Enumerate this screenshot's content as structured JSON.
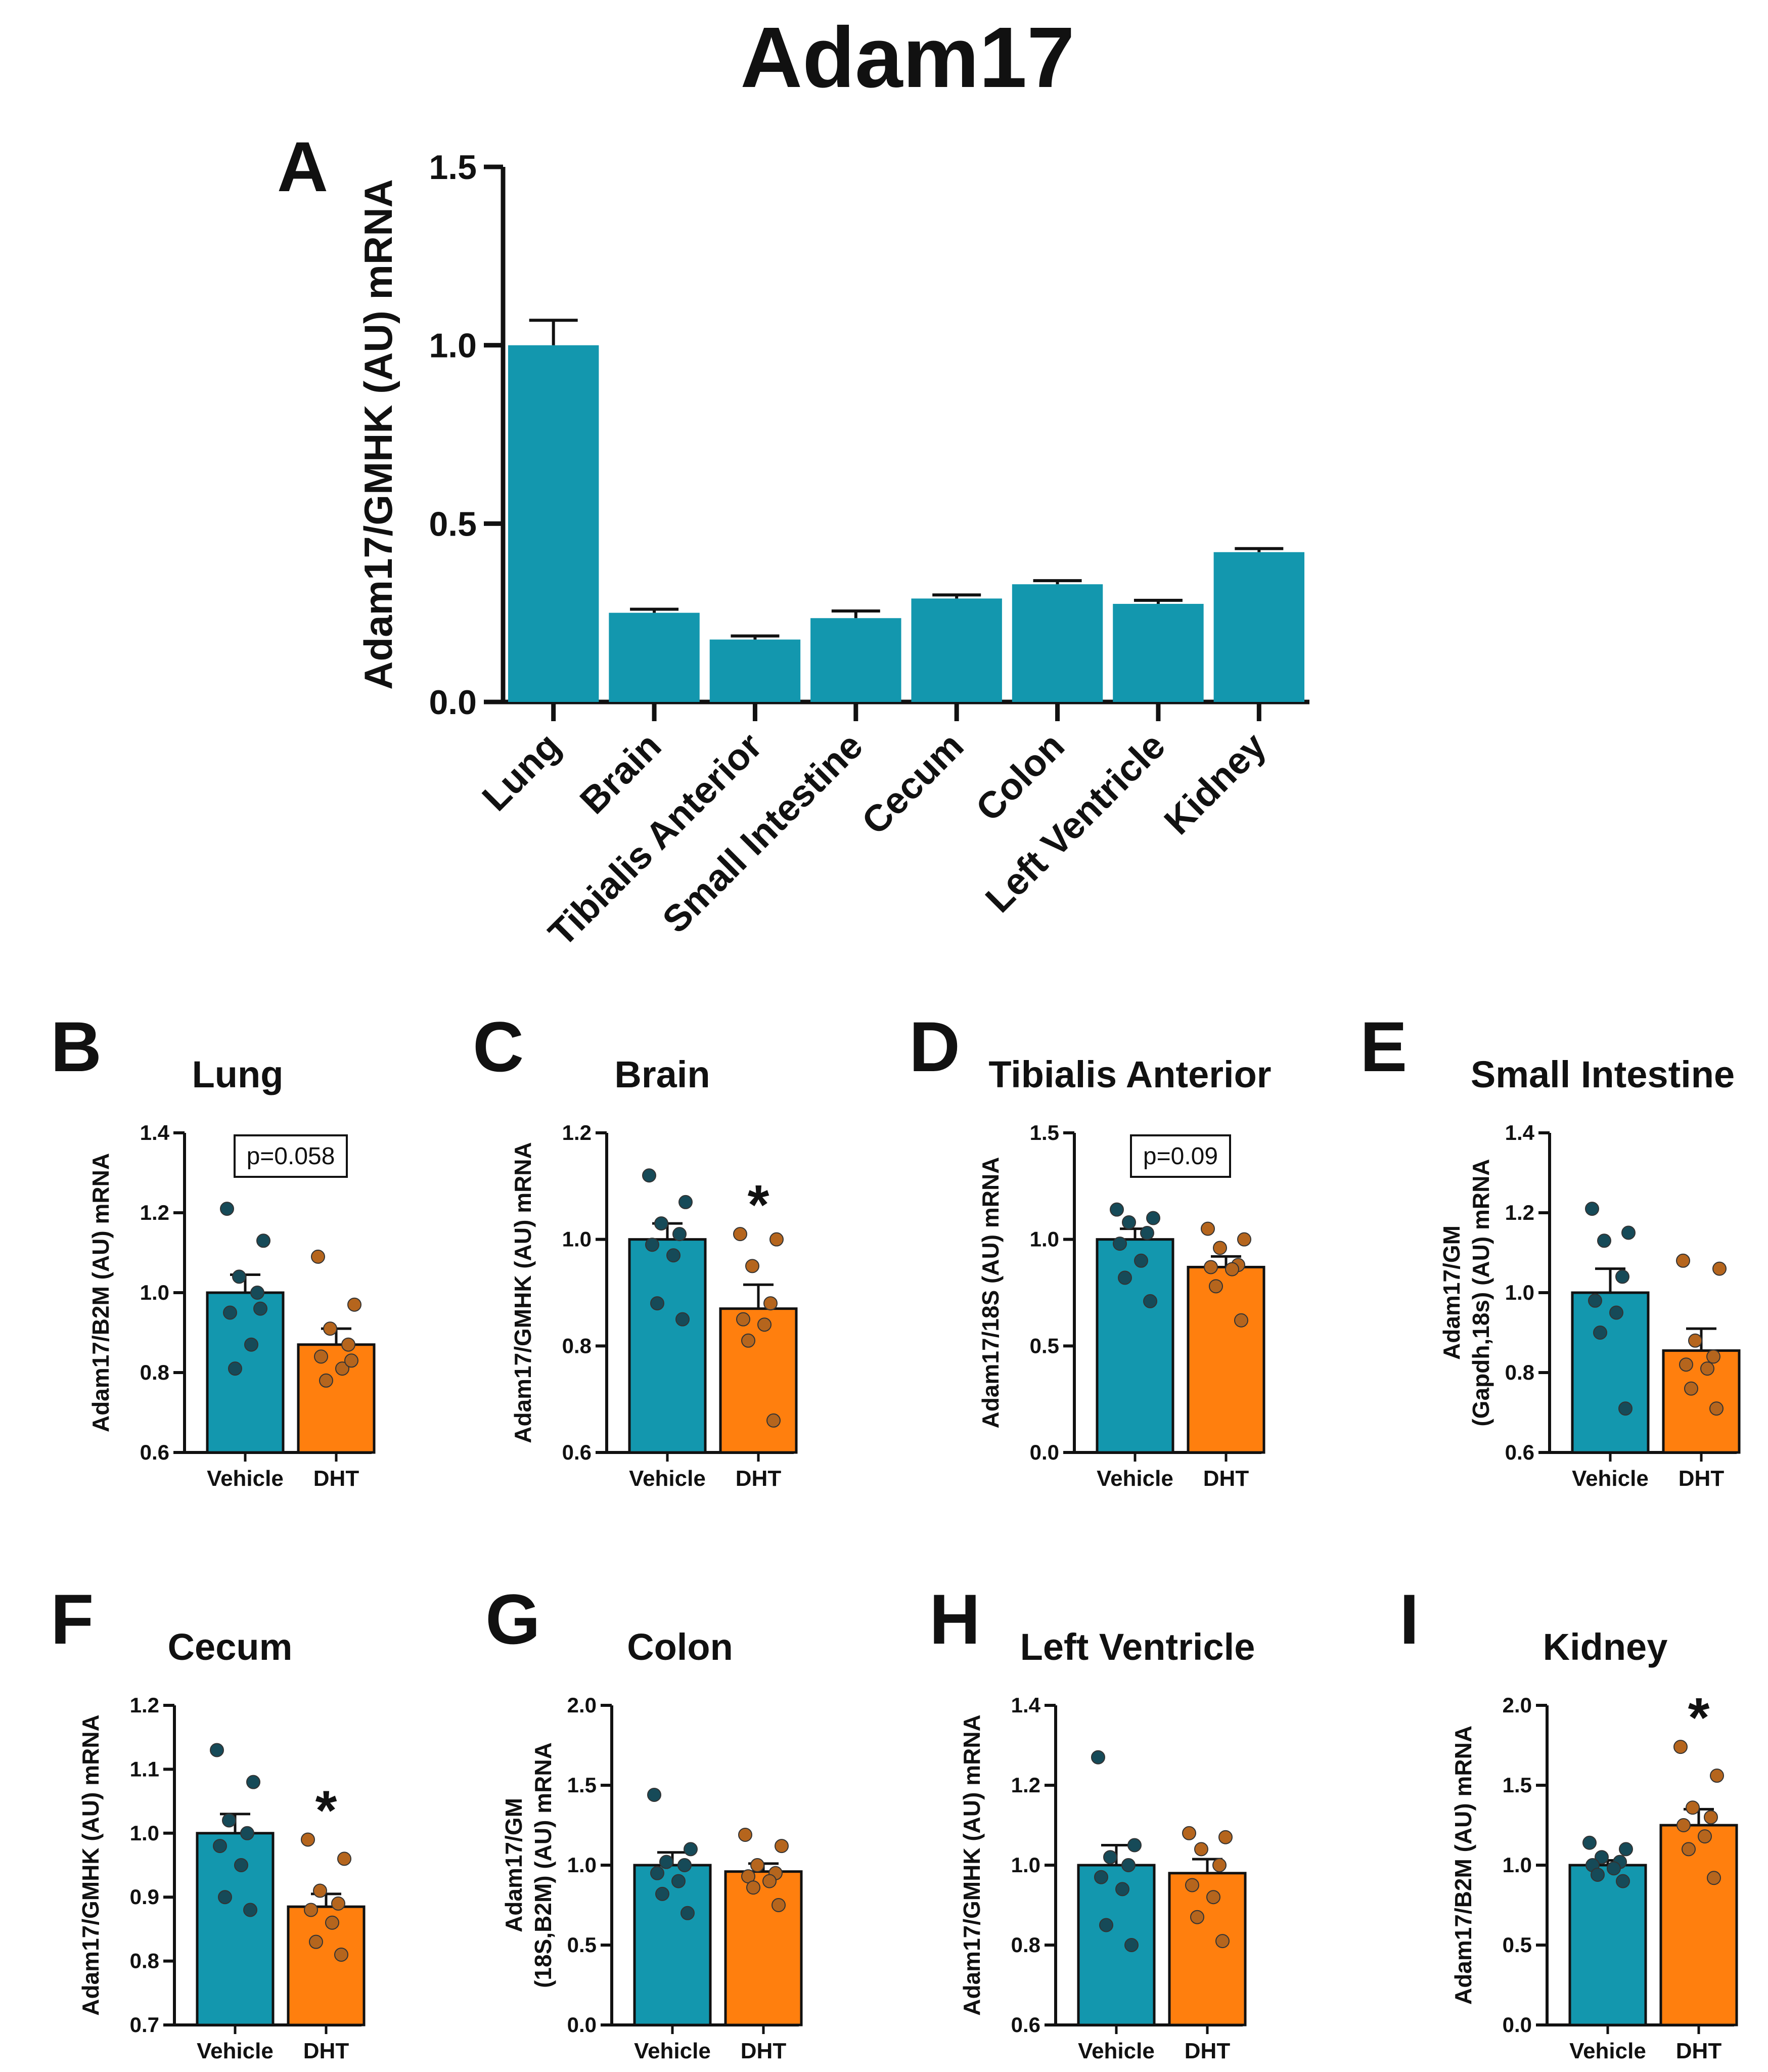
{
  "figure_title": "Adam17",
  "colors": {
    "vehicle": "#1397ae",
    "dht": "#ff7f0e",
    "axis": "#111111",
    "vehicle_dot": "#164a58",
    "dht_dot": "#b5651d"
  },
  "chart_data": [
    {
      "panel": "A",
      "type": "bar",
      "title": "",
      "ylabel": "Adam17/GMHK (AU) mRNA",
      "xlabel": "",
      "ylim": [
        0,
        1.5
      ],
      "yticks": [
        "0.0",
        "0.5",
        "1.0",
        "1.5"
      ],
      "categories": [
        "Lung",
        "Brain",
        "Tibialis Anterior",
        "Small Intestine",
        "Cecum",
        "Colon",
        "Left Ventricle",
        "Kidney"
      ],
      "values": [
        1.0,
        0.25,
        0.175,
        0.235,
        0.29,
        0.33,
        0.275,
        0.42
      ],
      "errors": [
        0.07,
        0.01,
        0.01,
        0.02,
        0.01,
        0.01,
        0.01,
        0.01
      ]
    },
    {
      "panel": "B",
      "type": "bar",
      "title": "Lung",
      "ylabel": "Adam17/B2M (AU) mRNA",
      "ylim": [
        0.6,
        1.4
      ],
      "yticks": [
        "0.6",
        "0.8",
        "1.0",
        "1.2",
        "1.4"
      ],
      "categories": [
        "Vehicle",
        "DHT"
      ],
      "series": [
        {
          "name": "Vehicle",
          "mean": 1.0,
          "sem": 0.045,
          "points": [
            1.21,
            1.13,
            1.04,
            1.0,
            0.95,
            0.87,
            0.81,
            0.96
          ]
        },
        {
          "name": "DHT",
          "mean": 0.87,
          "sem": 0.04,
          "points": [
            1.09,
            0.97,
            0.91,
            0.87,
            0.84,
            0.81,
            0.78,
            0.83
          ]
        }
      ],
      "annotation": {
        "text": "p=0.058",
        "boxed": true
      }
    },
    {
      "panel": "C",
      "type": "bar",
      "title": "Brain",
      "ylabel": "Adam17/GMHK (AU) mRNA",
      "ylim": [
        0.6,
        1.2
      ],
      "yticks": [
        "0.6",
        "0.8",
        "1.0",
        "1.2"
      ],
      "categories": [
        "Vehicle",
        "DHT"
      ],
      "series": [
        {
          "name": "Vehicle",
          "mean": 1.0,
          "sem": 0.03,
          "points": [
            1.12,
            1.07,
            1.03,
            1.01,
            0.99,
            0.97,
            0.88,
            0.85
          ]
        },
        {
          "name": "DHT",
          "mean": 0.87,
          "sem": 0.045,
          "points": [
            1.01,
            1.0,
            0.95,
            0.88,
            0.85,
            0.84,
            0.81,
            0.66
          ]
        }
      ],
      "annotation": {
        "text": "*",
        "boxed": false
      }
    },
    {
      "panel": "D",
      "type": "bar",
      "title": "Tibialis Anterior",
      "ylabel": "Adam17/18S (AU) mRNA",
      "ylim": [
        0.0,
        1.5
      ],
      "yticks": [
        "0.0",
        "0.5",
        "1.0",
        "1.5"
      ],
      "categories": [
        "Vehicle",
        "DHT"
      ],
      "series": [
        {
          "name": "Vehicle",
          "mean": 1.0,
          "sem": 0.05,
          "points": [
            1.14,
            1.1,
            1.08,
            1.03,
            0.98,
            0.9,
            0.82,
            0.71
          ]
        },
        {
          "name": "DHT",
          "mean": 0.87,
          "sem": 0.05,
          "points": [
            1.05,
            1.0,
            0.96,
            0.88,
            0.87,
            0.86,
            0.78,
            0.62
          ]
        }
      ],
      "annotation": {
        "text": "p=0.09",
        "boxed": true
      }
    },
    {
      "panel": "E",
      "type": "bar",
      "title": "Small Intestine",
      "ylabel": "Adam17/GM\n(Gapdh,18s) (AU) mRNA",
      "ylim": [
        0.6,
        1.4
      ],
      "yticks": [
        "0.6",
        "0.8",
        "1.0",
        "1.2",
        "1.4"
      ],
      "categories": [
        "Vehicle",
        "DHT"
      ],
      "series": [
        {
          "name": "Vehicle",
          "mean": 1.0,
          "sem": 0.06,
          "points": [
            1.21,
            1.15,
            1.13,
            1.04,
            0.98,
            0.95,
            0.9,
            0.71
          ]
        },
        {
          "name": "DHT",
          "mean": 0.855,
          "sem": 0.055,
          "points": [
            1.08,
            1.06,
            0.88,
            0.84,
            0.82,
            0.81,
            0.76,
            0.71
          ]
        }
      ]
    },
    {
      "panel": "F",
      "type": "bar",
      "title": "Cecum",
      "ylabel": "Adam17/GMHK (AU) mRNA",
      "ylim": [
        0.7,
        1.2
      ],
      "yticks": [
        "0.7",
        "0.8",
        "0.9",
        "1.0",
        "1.1",
        "1.2"
      ],
      "categories": [
        "Vehicle",
        "DHT"
      ],
      "series": [
        {
          "name": "Vehicle",
          "mean": 1.0,
          "sem": 0.03,
          "points": [
            1.13,
            1.08,
            1.02,
            1.0,
            0.98,
            0.95,
            0.9,
            0.88
          ]
        },
        {
          "name": "DHT",
          "mean": 0.885,
          "sem": 0.02,
          "points": [
            0.99,
            0.96,
            0.91,
            0.89,
            0.88,
            0.86,
            0.83,
            0.81
          ]
        }
      ],
      "annotation": {
        "text": "*",
        "boxed": false
      }
    },
    {
      "panel": "G",
      "type": "bar",
      "title": "Colon",
      "ylabel": "Adam17/GM\n(18S,B2M) (AU) mRNA",
      "ylim": [
        0.0,
        2.0
      ],
      "yticks": [
        "0.0",
        "0.5",
        "1.0",
        "1.5",
        "2.0"
      ],
      "categories": [
        "Vehicle",
        "DHT"
      ],
      "series": [
        {
          "name": "Vehicle",
          "mean": 1.0,
          "sem": 0.08,
          "points": [
            1.44,
            1.1,
            1.02,
            1.0,
            0.95,
            0.9,
            0.82,
            0.7
          ]
        },
        {
          "name": "DHT",
          "mean": 0.96,
          "sem": 0.05,
          "points": [
            1.19,
            1.12,
            1.0,
            0.95,
            0.93,
            0.9,
            0.86,
            0.75
          ]
        }
      ]
    },
    {
      "panel": "H",
      "type": "bar",
      "title": "Left Ventricle",
      "ylabel": "Adam17/GMHK (AU) mRNA",
      "ylim": [
        0.6,
        1.4
      ],
      "yticks": [
        "0.6",
        "0.8",
        "1.0",
        "1.2",
        "1.4"
      ],
      "categories": [
        "Vehicle",
        "DHT"
      ],
      "series": [
        {
          "name": "Vehicle",
          "mean": 1.0,
          "sem": 0.05,
          "points": [
            1.27,
            1.05,
            1.02,
            1.0,
            0.97,
            0.94,
            0.85,
            0.8
          ]
        },
        {
          "name": "DHT",
          "mean": 0.98,
          "sem": 0.035,
          "points": [
            1.08,
            1.07,
            1.04,
            1.0,
            0.95,
            0.92,
            0.87,
            0.81
          ]
        }
      ]
    },
    {
      "panel": "I",
      "type": "bar",
      "title": "Kidney",
      "ylabel": "Adam17/B2M (AU) mRNA",
      "ylim": [
        0.0,
        2.0
      ],
      "yticks": [
        "0.0",
        "0.5",
        "1.0",
        "1.5",
        "2.0"
      ],
      "categories": [
        "Vehicle",
        "DHT"
      ],
      "series": [
        {
          "name": "Vehicle",
          "mean": 1.0,
          "sem": 0.03,
          "points": [
            1.14,
            1.1,
            1.05,
            1.02,
            1.0,
            0.98,
            0.94,
            0.9
          ]
        },
        {
          "name": "DHT",
          "mean": 1.25,
          "sem": 0.1,
          "points": [
            1.74,
            1.56,
            1.36,
            1.3,
            1.25,
            1.18,
            1.1,
            0.92
          ]
        }
      ],
      "annotation": {
        "text": "*",
        "boxed": false
      }
    }
  ]
}
